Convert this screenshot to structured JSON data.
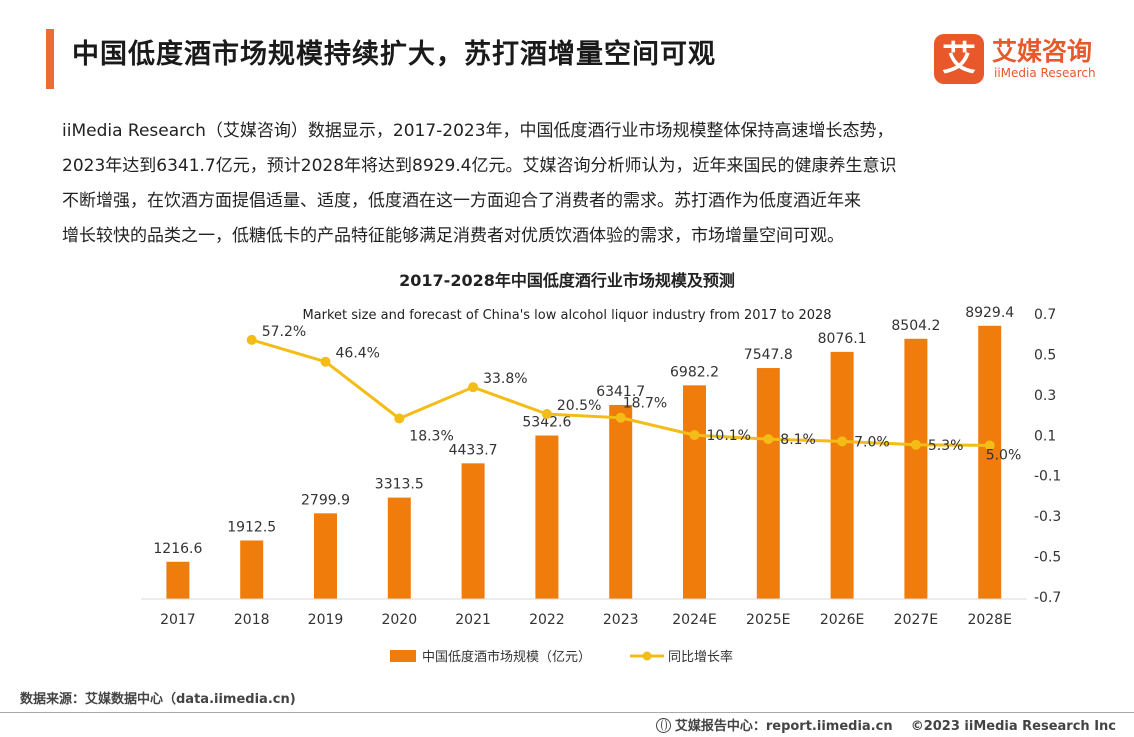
{
  "header": {
    "title": "中国低度酒市场规模持续扩大，苏打酒增量空间可观",
    "logo_cn": "艾媒咨询",
    "logo_en": "iiMedia Research",
    "logo_mark": "艾"
  },
  "paragraph": {
    "lines": [
      "iiMedia Research（艾媒咨询）数据显示，2017-2023年，中国低度酒行业市场规模整体保持高速增长态势，",
      "2023年达到6341.7亿元，预计2028年将达到8929.4亿元。艾媒咨询分析师认为，近年来国民的健康养生意识",
      "不断增强，在饮酒方面提倡适量、适度，低度酒在这一方面迎合了消费者的需求。苏打酒作为低度酒近年来",
      "增长较快的品类之一，低糖低卡的产品特征能够满足消费者对优质饮酒体验的需求，市场增量空间可观。"
    ]
  },
  "chart_data": {
    "type": "bar",
    "title": "2017-2028年中国低度酒行业市场规模及预测",
    "subtitle": "Market size and forecast of China's low alcohol liquor industry from 2017 to 2028",
    "categories": [
      "2017",
      "2018",
      "2019",
      "2020",
      "2021",
      "2022",
      "2023",
      "2024E",
      "2025E",
      "2026E",
      "2027E",
      "2028E"
    ],
    "series": [
      {
        "name": "中国低度酒市场规模（亿元）",
        "type": "bar",
        "axis": "left",
        "values": [
          1216.6,
          1912.5,
          2799.9,
          3313.5,
          4433.7,
          5342.6,
          6341.7,
          6982.2,
          7547.8,
          8076.1,
          8504.2,
          8929.4
        ],
        "labels": [
          "1216.6",
          "1912.5",
          "2799.9",
          "3313.5",
          "4433.7",
          "5342.6",
          "6341.7",
          "6982.2",
          "7547.8",
          "8076.1",
          "8504.2",
          "8929.4"
        ]
      },
      {
        "name": "同比增长率",
        "type": "line",
        "axis": "right",
        "values": [
          null,
          0.572,
          0.464,
          0.183,
          0.338,
          0.205,
          0.187,
          0.101,
          0.081,
          0.07,
          0.053,
          0.05
        ],
        "labels": [
          "",
          "57.2%",
          "46.4%",
          "18.3%",
          "33.8%",
          "20.5%",
          "18.7%",
          "10.1%",
          "8.1%",
          "7.0%",
          "5.3%",
          "5.0%"
        ]
      }
    ],
    "ylim_left": [
      0,
      10000
    ],
    "ylim_right": [
      -0.7,
      0.7
    ],
    "right_ticks": [
      "0.7",
      "0.5",
      "0.3",
      "0.1",
      "-0.1",
      "-0.3",
      "-0.5",
      "-0.7"
    ],
    "legend_position": "bottom-center",
    "grid": false,
    "colors": {
      "bar": "#f07c0c",
      "line": "#f4bc16",
      "text": "#333333"
    }
  },
  "footer": {
    "source": "数据来源：艾媒数据中心（data.iimedia.cn)",
    "report_center": "艾媒报告中心：report.iimedia.cn",
    "copyright": "©2023  iiMedia Research  Inc"
  }
}
